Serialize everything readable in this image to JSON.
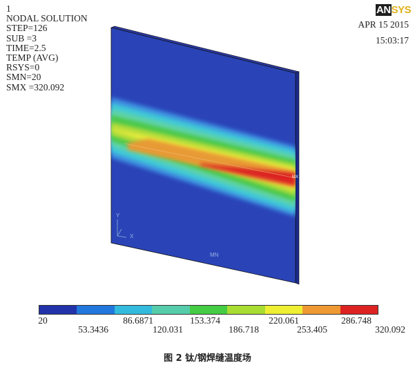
{
  "window_number": "1",
  "solution": {
    "lines": [
      "NODAL SOLUTION",
      "STEP=126",
      "SUB =3",
      "TIME=2.5",
      "TEMP (AVG)",
      "RSYS=0",
      "SMN=20",
      "SMX =320.092"
    ]
  },
  "logo": {
    "part1": "AN",
    "part2": "SYS"
  },
  "date": "APR 15 2015",
  "time": "15:03:17",
  "triad": {
    "y": "Y",
    "x": "X"
  },
  "min_marker": "MN",
  "max_marker": "MX",
  "legend": {
    "colors": [
      "#2233aa",
      "#2277dd",
      "#33bbdd",
      "#55ccaa",
      "#44cc44",
      "#aadd33",
      "#eeee33",
      "#ee9933",
      "#dd2222"
    ],
    "ticks_low": [
      "20",
      "86.6871",
      "153.374",
      "220.061",
      "286.748"
    ],
    "ticks_high": [
      "53.3436",
      "120.031",
      "186.718",
      "253.405",
      "320.092"
    ]
  },
  "caption": "图 2    钛/钢焊缝温度场"
}
